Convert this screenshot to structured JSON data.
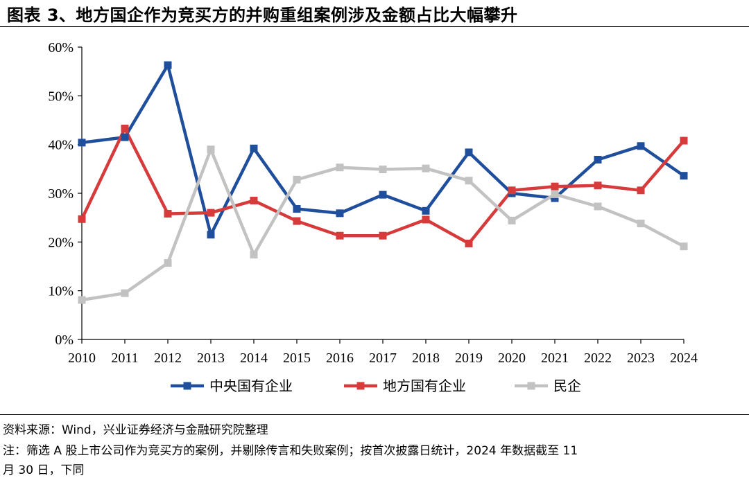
{
  "title": "图表 3、地方国企作为竞买方的并购重组案例涉及金额占比大幅攀升",
  "chart_data": {
    "type": "line",
    "title": "",
    "xlabel": "",
    "ylabel": "",
    "x": [
      "2010",
      "2011",
      "2012",
      "2013",
      "2014",
      "2015",
      "2016",
      "2017",
      "2018",
      "2019",
      "2020",
      "2021",
      "2022",
      "2023",
      "2024"
    ],
    "ylim": [
      0,
      60
    ],
    "yticks": [
      "0%",
      "10%",
      "20%",
      "30%",
      "40%",
      "50%",
      "60%"
    ],
    "y_unit": "%",
    "grid": false,
    "legend_position": "bottom",
    "series": [
      {
        "name": "中央国有企业",
        "color": "#1f4e9c",
        "values": [
          40.4,
          41.5,
          56.3,
          21.5,
          39.2,
          26.8,
          25.9,
          29.7,
          26.4,
          38.4,
          30.0,
          29.0,
          36.9,
          39.7,
          33.6
        ]
      },
      {
        "name": "地方国有企业",
        "color": "#d63a3a",
        "values": [
          24.7,
          43.3,
          25.8,
          26.0,
          28.5,
          24.3,
          21.3,
          21.3,
          24.6,
          19.7,
          30.6,
          31.4,
          31.6,
          30.6,
          40.8
        ]
      },
      {
        "name": "民企",
        "color": "#c2c2c2",
        "values": [
          8.1,
          9.5,
          15.7,
          39.0,
          17.4,
          32.8,
          35.3,
          34.9,
          35.1,
          32.6,
          24.4,
          29.8,
          27.3,
          23.8,
          19.1
        ]
      }
    ]
  },
  "footer": {
    "source": "资料来源：Wind，兴业证券经济与金融研究院整理",
    "note_line1": "注：筛选 A 股上市公司作为竞买方的案例，并剔除传言和失败案例；按首次披露日统计，2024 年数据截至 11",
    "note_line2": "月 30 日，下同"
  }
}
